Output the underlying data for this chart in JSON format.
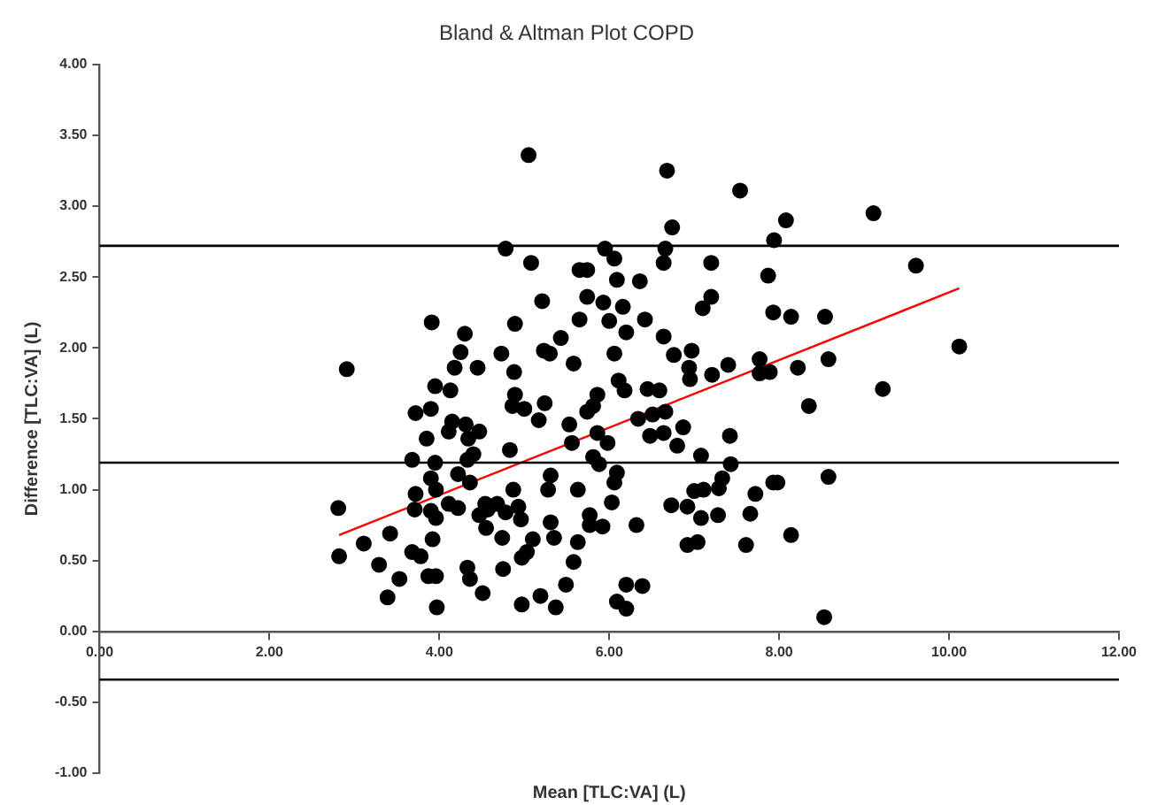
{
  "chart_data": {
    "type": "scatter",
    "title": "Bland & Altman Plot COPD",
    "xlabel": "Mean [TLC:VA] (L)",
    "ylabel": "Difference [TLC:VA] (L)",
    "xlim": [
      0,
      12
    ],
    "xticks": [
      {
        "value": 0,
        "label": "0.00"
      },
      {
        "value": 2,
        "label": "2.00"
      },
      {
        "value": 4,
        "label": "4.00"
      },
      {
        "value": 6,
        "label": "6.00"
      },
      {
        "value": 8,
        "label": "8.00"
      },
      {
        "value": 10,
        "label": "10.00"
      },
      {
        "value": 12,
        "label": "12.00"
      }
    ],
    "ylim": [
      -1,
      4
    ],
    "yticks": [
      {
        "value": -1,
        "label": "-1.00"
      },
      {
        "value": -0.5,
        "label": "-0.50"
      },
      {
        "value": 0,
        "label": "0.00"
      },
      {
        "value": 0.5,
        "label": "0.50"
      },
      {
        "value": 1,
        "label": "1.00"
      },
      {
        "value": 1.5,
        "label": "1.50"
      },
      {
        "value": 2,
        "label": "2.00"
      },
      {
        "value": 2.5,
        "label": "2.50"
      },
      {
        "value": 3,
        "label": "3.00"
      },
      {
        "value": 3.5,
        "label": "3.50"
      },
      {
        "value": 4,
        "label": "4.00"
      }
    ],
    "grid": false,
    "legend": false,
    "marker": "circle",
    "ref_lines": [
      {
        "axis": "y",
        "value": 2.72,
        "color": "#000000"
      },
      {
        "axis": "y",
        "value": 1.19,
        "color": "#000000"
      },
      {
        "axis": "y",
        "value": -0.34,
        "color": "#000000"
      }
    ],
    "series": [
      {
        "color": "#000000",
        "x": [
          3.91,
          4.3,
          4.25,
          4.18,
          4.45,
          2.91,
          3.95,
          4.13,
          3.72,
          3.9,
          4.15,
          4.31,
          4.47,
          4.11,
          3.85,
          4.34,
          3.68,
          3.95,
          4.33,
          4.22,
          3.9,
          4.36,
          3.96,
          3.72,
          2.81,
          3.71,
          3.9,
          4.11,
          4.22,
          3.96,
          4.47,
          4.54,
          4.55,
          3.11,
          3.42,
          3.92,
          2.82,
          3.68,
          3.78,
          3.29,
          4.33,
          3.53,
          3.87,
          3.96,
          4.36,
          4.51,
          3.39,
          3.97,
          5.05,
          6.68,
          7.54,
          6.74,
          7.94,
          4.78,
          5.95,
          6.66,
          5.08,
          6.06,
          5.65,
          5.74,
          6.64,
          7.2,
          6.09,
          6.36,
          7.87,
          5.21,
          5.74,
          5.93,
          6.16,
          7.2,
          7.1,
          7.93,
          4.89,
          5.65,
          6.0,
          6.42,
          6.2,
          5.43,
          6.64,
          4.73,
          5.23,
          5.3,
          6.06,
          6.76,
          6.97,
          4.88,
          5.58,
          6.94,
          7.21,
          7.4,
          7.77,
          7.89,
          6.11,
          6.95,
          4.89,
          5.86,
          6.18,
          6.45,
          6.59,
          7.77,
          4.86,
          5.0,
          5.24,
          5.17,
          5.53,
          5.81,
          5.74,
          6.34,
          6.51,
          6.66,
          6.48,
          6.64,
          6.87,
          6.8,
          5.86,
          5.98,
          5.56,
          4.83,
          4.4,
          5.81,
          5.88,
          7.08,
          7.42,
          7.43,
          6.09,
          5.31,
          6.06,
          5.28,
          5.63,
          4.87,
          4.68,
          4.57,
          4.78,
          4.93,
          4.96,
          5.31,
          5.77,
          5.77,
          5.92,
          6.03,
          6.32,
          6.73,
          6.92,
          7.0,
          7.11,
          7.29,
          7.33,
          7.72,
          7.93,
          7.08,
          7.28,
          7.66,
          5.1,
          5.35,
          5.63,
          4.74,
          5.03,
          4.97,
          6.92,
          7.04,
          7.61,
          5.58,
          4.75,
          5.49,
          4.97,
          5.19,
          5.37,
          6.2,
          6.39,
          6.09,
          6.2,
          8.08,
          9.11,
          9.61,
          8.14,
          8.54,
          10.12,
          8.58,
          8.22,
          9.22,
          8.35,
          7.98,
          8.58,
          8.14,
          8.53
        ],
        "values": [
          2.18,
          2.1,
          1.97,
          1.86,
          1.86,
          1.85,
          1.73,
          1.7,
          1.54,
          1.57,
          1.48,
          1.46,
          1.41,
          1.41,
          1.36,
          1.36,
          1.21,
          1.19,
          1.21,
          1.11,
          1.08,
          1.05,
          1.0,
          0.97,
          0.87,
          0.86,
          0.85,
          0.9,
          0.87,
          0.8,
          0.82,
          0.9,
          0.73,
          0.62,
          0.69,
          0.65,
          0.53,
          0.56,
          0.53,
          0.47,
          0.45,
          0.37,
          0.39,
          0.39,
          0.37,
          0.27,
          0.24,
          0.17,
          3.36,
          3.25,
          3.11,
          2.85,
          2.76,
          2.7,
          2.7,
          2.7,
          2.6,
          2.63,
          2.55,
          2.55,
          2.6,
          2.6,
          2.48,
          2.47,
          2.51,
          2.33,
          2.36,
          2.32,
          2.29,
          2.36,
          2.28,
          2.25,
          2.17,
          2.2,
          2.19,
          2.2,
          2.11,
          2.07,
          2.08,
          1.96,
          1.98,
          1.96,
          1.96,
          1.95,
          1.98,
          1.83,
          1.89,
          1.86,
          1.81,
          1.88,
          1.92,
          1.83,
          1.77,
          1.78,
          1.67,
          1.67,
          1.7,
          1.71,
          1.7,
          1.82,
          1.59,
          1.57,
          1.61,
          1.49,
          1.46,
          1.59,
          1.55,
          1.5,
          1.53,
          1.55,
          1.38,
          1.4,
          1.44,
          1.31,
          1.4,
          1.33,
          1.33,
          1.28,
          1.25,
          1.23,
          1.18,
          1.24,
          1.38,
          1.18,
          1.12,
          1.1,
          1.05,
          1.0,
          1.0,
          1.0,
          0.9,
          0.86,
          0.84,
          0.88,
          0.79,
          0.77,
          0.82,
          0.75,
          0.74,
          0.91,
          0.75,
          0.89,
          0.88,
          0.99,
          1.0,
          1.01,
          1.08,
          0.97,
          1.05,
          0.8,
          0.82,
          0.83,
          0.65,
          0.66,
          0.63,
          0.66,
          0.56,
          0.52,
          0.61,
          0.63,
          0.61,
          0.49,
          0.44,
          0.33,
          0.19,
          0.25,
          0.17,
          0.33,
          0.32,
          0.21,
          0.16,
          2.9,
          2.95,
          2.58,
          2.22,
          2.22,
          2.01,
          1.92,
          1.86,
          1.71,
          1.59,
          1.05,
          1.09,
          0.68,
          0.1
        ]
      },
      {
        "type": "line",
        "color": "#ff0000",
        "marker": "none",
        "x": [
          2.82,
          10.12
        ],
        "values": [
          0.68,
          2.42
        ]
      }
    ]
  }
}
